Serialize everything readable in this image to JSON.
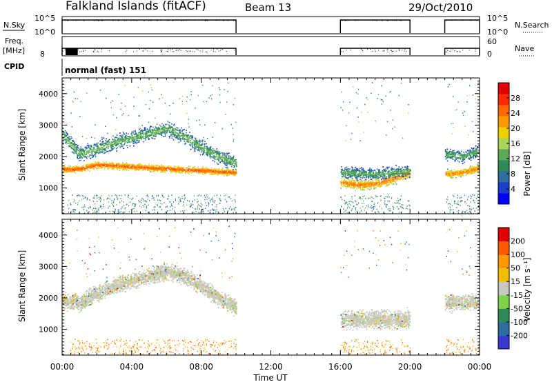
{
  "header": {
    "station": "Falkland Islands (fitACF)",
    "beam": "Beam 13",
    "date": "29/Oct/2010"
  },
  "aux_panels": {
    "nsky_label": "N.Sky",
    "nsearch_label": "N.Search",
    "nsky_ticks": [
      "10^5",
      "10^0"
    ],
    "nsearch_ticks": [
      "10^5",
      "10^0"
    ],
    "freq_label_line1": "Freq.",
    "freq_label_line2": "[MHz]",
    "freq_ticks": [
      "8"
    ],
    "nave_label": "Nave",
    "nave_ticks": [
      "60",
      "0"
    ],
    "cpid_label": "CPID",
    "cpid_value": "normal (fast) 151"
  },
  "colorbars": {
    "power": {
      "label": "Power [dB]",
      "ticks": [
        "28",
        "24",
        "20",
        "16",
        "12",
        "8",
        "4"
      ],
      "colors": [
        "#0000ff",
        "#1a3fc8",
        "#2e6e9e",
        "#2e8b57",
        "#5aa85a",
        "#a9d65a",
        "#f0d000",
        "#ff9900",
        "#ff6a00",
        "#ff2a00",
        "#e00000"
      ]
    },
    "velocity": {
      "label": "Velocity [m s⁻¹]",
      "ticks": [
        "200",
        "100",
        "50",
        "15",
        "-15",
        "-50",
        "-100",
        "-200"
      ],
      "colors": [
        "#3a3ad0",
        "#2e6e9e",
        "#2e8b57",
        "#7fd24a",
        "#c8c8c0",
        "#f0c000",
        "#ff9900",
        "#ff5a00",
        "#e00000"
      ]
    }
  },
  "chart_data": [
    {
      "type": "line",
      "name": "N.Sky / N.Search",
      "x_unit": "hours UT",
      "on_intervals": [
        [
          0.0,
          10.0
        ],
        [
          16.0,
          20.0
        ],
        [
          22.0,
          24.0
        ]
      ],
      "y_level": "near 10^5",
      "y_scale": "log",
      "ylim": [
        "10^0",
        "10^5"
      ]
    },
    {
      "type": "scatter",
      "name": "Freq. / Nave",
      "on_intervals": [
        [
          0.0,
          10.0
        ],
        [
          16.0,
          20.0
        ],
        [
          22.0,
          24.0
        ]
      ],
      "freq_ylim_label": "8 MHz",
      "nave_ylim": [
        0,
        60
      ]
    },
    {
      "type": "heatmap",
      "name": "Power",
      "title": "",
      "xlabel": "",
      "ylabel": "Slant Range [km]",
      "xlim": [
        "00:00",
        "24:00"
      ],
      "ylim": [
        180,
        4500
      ],
      "x_ticks": [
        "00:00",
        "04:00",
        "08:00",
        "12:00",
        "16:00",
        "20:00",
        "00:00"
      ],
      "y_ticks": [
        1000,
        2000,
        3000,
        4000
      ],
      "colorbar_range_db": [
        0,
        32
      ],
      "bands": [
        {
          "range_km": [
            1450,
            1750
          ],
          "db": 27,
          "x_hours": [
            0,
            0.5,
            1,
            1.5,
            2,
            10
          ],
          "center_km": [
            1620,
            1600,
            1620,
            1680,
            1750,
            1500
          ]
        },
        {
          "range_km_span": 600,
          "db": 14,
          "x_hours": [
            0,
            1,
            2,
            3,
            4,
            5,
            6,
            7,
            8,
            9,
            10
          ],
          "center_km": [
            2700,
            2100,
            2250,
            2450,
            2600,
            2750,
            2900,
            2650,
            2300,
            2000,
            1800
          ]
        },
        {
          "range_km_span": 450,
          "db": 25,
          "x_hours": [
            16,
            17,
            18,
            19,
            20
          ],
          "center_km": [
            1200,
            1100,
            1150,
            1300,
            1500
          ]
        },
        {
          "range_km_span": 500,
          "db": 13,
          "x_hours": [
            16,
            18,
            20
          ],
          "center_km": [
            1500,
            1450,
            1550
          ]
        },
        {
          "range_km_span": 350,
          "db": 25,
          "x_hours": [
            22,
            23,
            24
          ],
          "center_km": [
            1450,
            1500,
            1650
          ]
        },
        {
          "range_km_span": 500,
          "db": 13,
          "x_hours": [
            22,
            23,
            24
          ],
          "center_km": [
            2100,
            2000,
            2200
          ]
        }
      ]
    },
    {
      "type": "heatmap",
      "name": "Velocity",
      "title": "",
      "xlabel": "Time UT",
      "ylabel": "Slant Range [km]",
      "xlim": [
        "00:00",
        "24:00"
      ],
      "ylim": [
        180,
        4500
      ],
      "x_ticks": [
        "00:00",
        "04:00",
        "08:00",
        "12:00",
        "16:00",
        "20:00",
        "00:00"
      ],
      "y_ticks": [
        1000,
        2000,
        3000,
        4000
      ],
      "colorbar_range_ms": [
        -200,
        200
      ],
      "dominant_value": "ground scatter (grey, -15 to 15 m/s)",
      "bands": [
        {
          "x_hours": [
            0,
            1,
            2,
            3,
            4,
            5,
            6,
            7,
            8,
            9,
            10
          ],
          "center_km": [
            1900,
            1850,
            2150,
            2400,
            2550,
            2700,
            2850,
            2700,
            2400,
            2000,
            1700
          ],
          "span_km": 700
        },
        {
          "x_hours": [
            16,
            20
          ],
          "center_km": [
            1300,
            1350
          ],
          "span_km": 800
        },
        {
          "x_hours": [
            22,
            24
          ],
          "center_km": [
            1850,
            1900
          ],
          "span_km": 700
        }
      ]
    }
  ]
}
